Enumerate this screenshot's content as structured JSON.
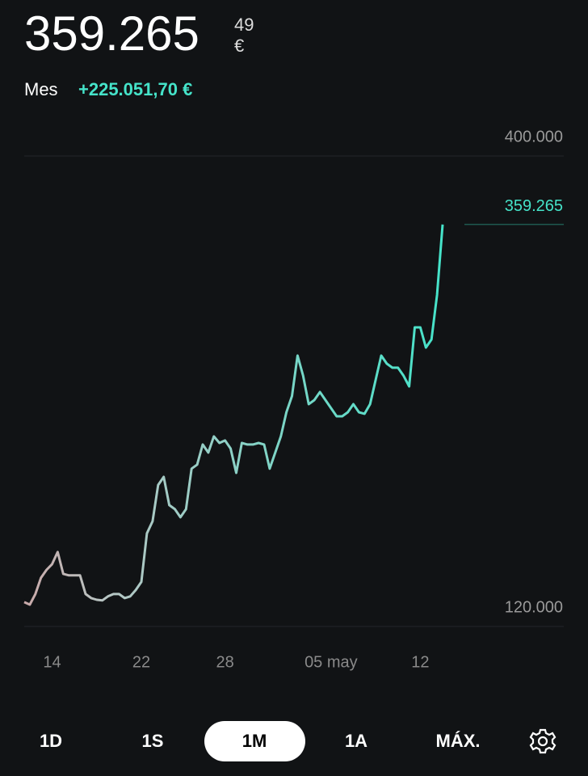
{
  "header": {
    "integer": "359.265",
    "decimals": "49",
    "currency": "€",
    "period": "Mes",
    "change": "+225.051,70 €"
  },
  "chart_data": {
    "type": "line",
    "categories": [
      null,
      null,
      null,
      null,
      null,
      "14",
      null,
      null,
      null,
      null,
      null,
      null,
      null,
      null,
      null,
      null,
      null,
      null,
      null,
      null,
      null,
      "22",
      null,
      null,
      null,
      null,
      null,
      null,
      null,
      null,
      null,
      null,
      null,
      null,
      null,
      null,
      "28",
      null,
      null,
      null,
      null,
      null,
      null,
      null,
      null,
      null,
      null,
      null,
      null,
      null,
      null,
      null,
      null,
      null,
      null,
      "05 may",
      null,
      null,
      null,
      null,
      null,
      null,
      null,
      null,
      null,
      null,
      null,
      null,
      null,
      null,
      null,
      "12",
      null,
      null,
      null,
      null
    ],
    "values": [
      134500,
      133000,
      139300,
      148900,
      153700,
      157100,
      164300,
      151300,
      150400,
      150400,
      150400,
      139300,
      136900,
      135900,
      135500,
      137900,
      139300,
      139300,
      136900,
      137900,
      141700,
      146500,
      175400,
      182600,
      204200,
      209000,
      192200,
      189800,
      185000,
      189800,
      213900,
      216300,
      228300,
      223500,
      233100,
      229200,
      230700,
      225900,
      211400,
      229200,
      228300,
      228300,
      229200,
      228300,
      213900,
      223500,
      233100,
      247500,
      257100,
      281200,
      269200,
      252300,
      254700,
      259500,
      254700,
      249900,
      245100,
      245100,
      247500,
      252300,
      247500,
      246600,
      252300,
      266800,
      281200,
      276400,
      274000,
      274000,
      269200,
      262900,
      298000,
      298000,
      286000,
      290800,
      317300,
      359265
    ],
    "color": "#45e3c9",
    "ylim": [
      120000,
      400000
    ],
    "yticks": [
      {
        "value": 120000,
        "label": "120.000"
      },
      {
        "value": 400000,
        "label": "400.000"
      }
    ],
    "annotations": [
      {
        "value": 359265,
        "label": "359.265"
      }
    ],
    "grid": true
  },
  "range_buttons": [
    "1D",
    "1S",
    "1M",
    "1A",
    "MÁX."
  ],
  "selected_range": 2
}
